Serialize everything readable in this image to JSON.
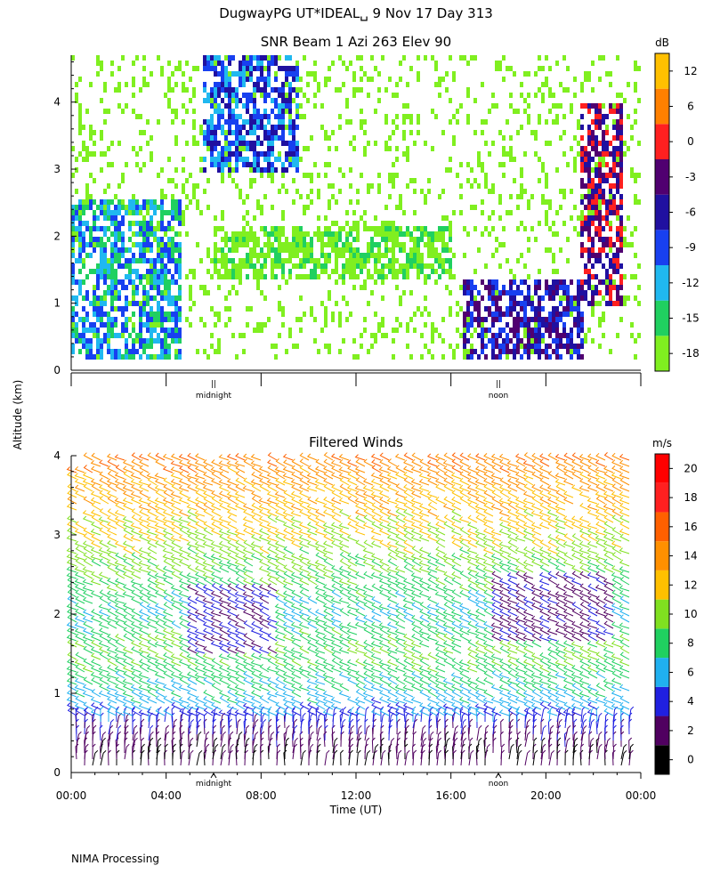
{
  "header": {
    "title": "DugwayPG UT*IDEAL␣   9 Nov 17 Day 313"
  },
  "y_axis_label": "Altitude (km)",
  "footer": "NIMA Processing",
  "chart_data": [
    {
      "type": "heatmap",
      "title": "SNR Beam 1 Azi 263 Elev 90",
      "ylabel": "Altitude (km)",
      "ylim": [
        0,
        4.7
      ],
      "yticks": [
        "0",
        "1",
        "2",
        "3",
        "4"
      ],
      "xlim": [
        0,
        24
      ],
      "x_markers": [
        {
          "x": 6,
          "label": "midnight"
        },
        {
          "x": 18,
          "label": "noon"
        }
      ],
      "colorbar": {
        "unit": "dB",
        "ticks": [
          "-18",
          "-15",
          "-12",
          "-9",
          "-6",
          "-3",
          "0",
          "6",
          "12"
        ],
        "colors": [
          "#80ef20",
          "#20d060",
          "#20b8f0",
          "#1840f0",
          "#2010a0",
          "#500070",
          "#ff2020",
          "#ff8000",
          "#ffc000"
        ]
      },
      "features": [
        {
          "x_start": 0.0,
          "x_end": 4.5,
          "alt_start": 0.2,
          "alt_end": 2.6,
          "level": "-9"
        },
        {
          "x_start": 5.5,
          "x_end": 9.5,
          "alt_start": 3.0,
          "alt_end": 4.7,
          "level": "-6"
        },
        {
          "x_start": 6.0,
          "x_end": 16.0,
          "alt_start": 1.4,
          "alt_end": 2.2,
          "level": "-15"
        },
        {
          "x_start": 16.5,
          "x_end": 21.5,
          "alt_start": 0.2,
          "alt_end": 1.4,
          "level": "-3"
        },
        {
          "x_start": 21.3,
          "x_end": 23.2,
          "alt_start": 1.0,
          "alt_end": 4.0,
          "level": "0"
        }
      ]
    },
    {
      "type": "scatter",
      "title": "Filtered Winds",
      "xlabel": "Time (UT)",
      "ylabel": "Altitude (km)",
      "ylim": [
        0,
        4
      ],
      "yticks": [
        "0",
        "1",
        "2",
        "3",
        "4"
      ],
      "xlim": [
        0,
        24
      ],
      "xticks": [
        "00:00",
        "04:00",
        "08:00",
        "12:00",
        "16:00",
        "20:00",
        "00:00"
      ],
      "x_markers": [
        {
          "x": 6,
          "label": "midnight"
        },
        {
          "x": 18,
          "label": "noon"
        }
      ],
      "colorbar": {
        "unit": "m/s",
        "ticks": [
          "0",
          "2",
          "4",
          "6",
          "8",
          "10",
          "12",
          "14",
          "16",
          "18",
          "20"
        ],
        "colors": [
          "#000000",
          "#500060",
          "#2020e0",
          "#20b0f0",
          "#20d060",
          "#80e020",
          "#ffc000",
          "#ff9000",
          "#ff6000",
          "#ff2020",
          "#ff0000"
        ]
      },
      "wind_profile": [
        {
          "alt": 0.2,
          "speed": 2
        },
        {
          "alt": 0.6,
          "speed": 5
        },
        {
          "alt": 1.0,
          "speed": 8
        },
        {
          "alt": 1.5,
          "speed": 10
        },
        {
          "alt": 2.0,
          "speed": 8
        },
        {
          "alt": 2.5,
          "speed": 10
        },
        {
          "alt": 3.0,
          "speed": 12
        },
        {
          "alt": 3.5,
          "speed": 14
        },
        {
          "alt": 4.0,
          "speed": 16
        }
      ]
    }
  ]
}
